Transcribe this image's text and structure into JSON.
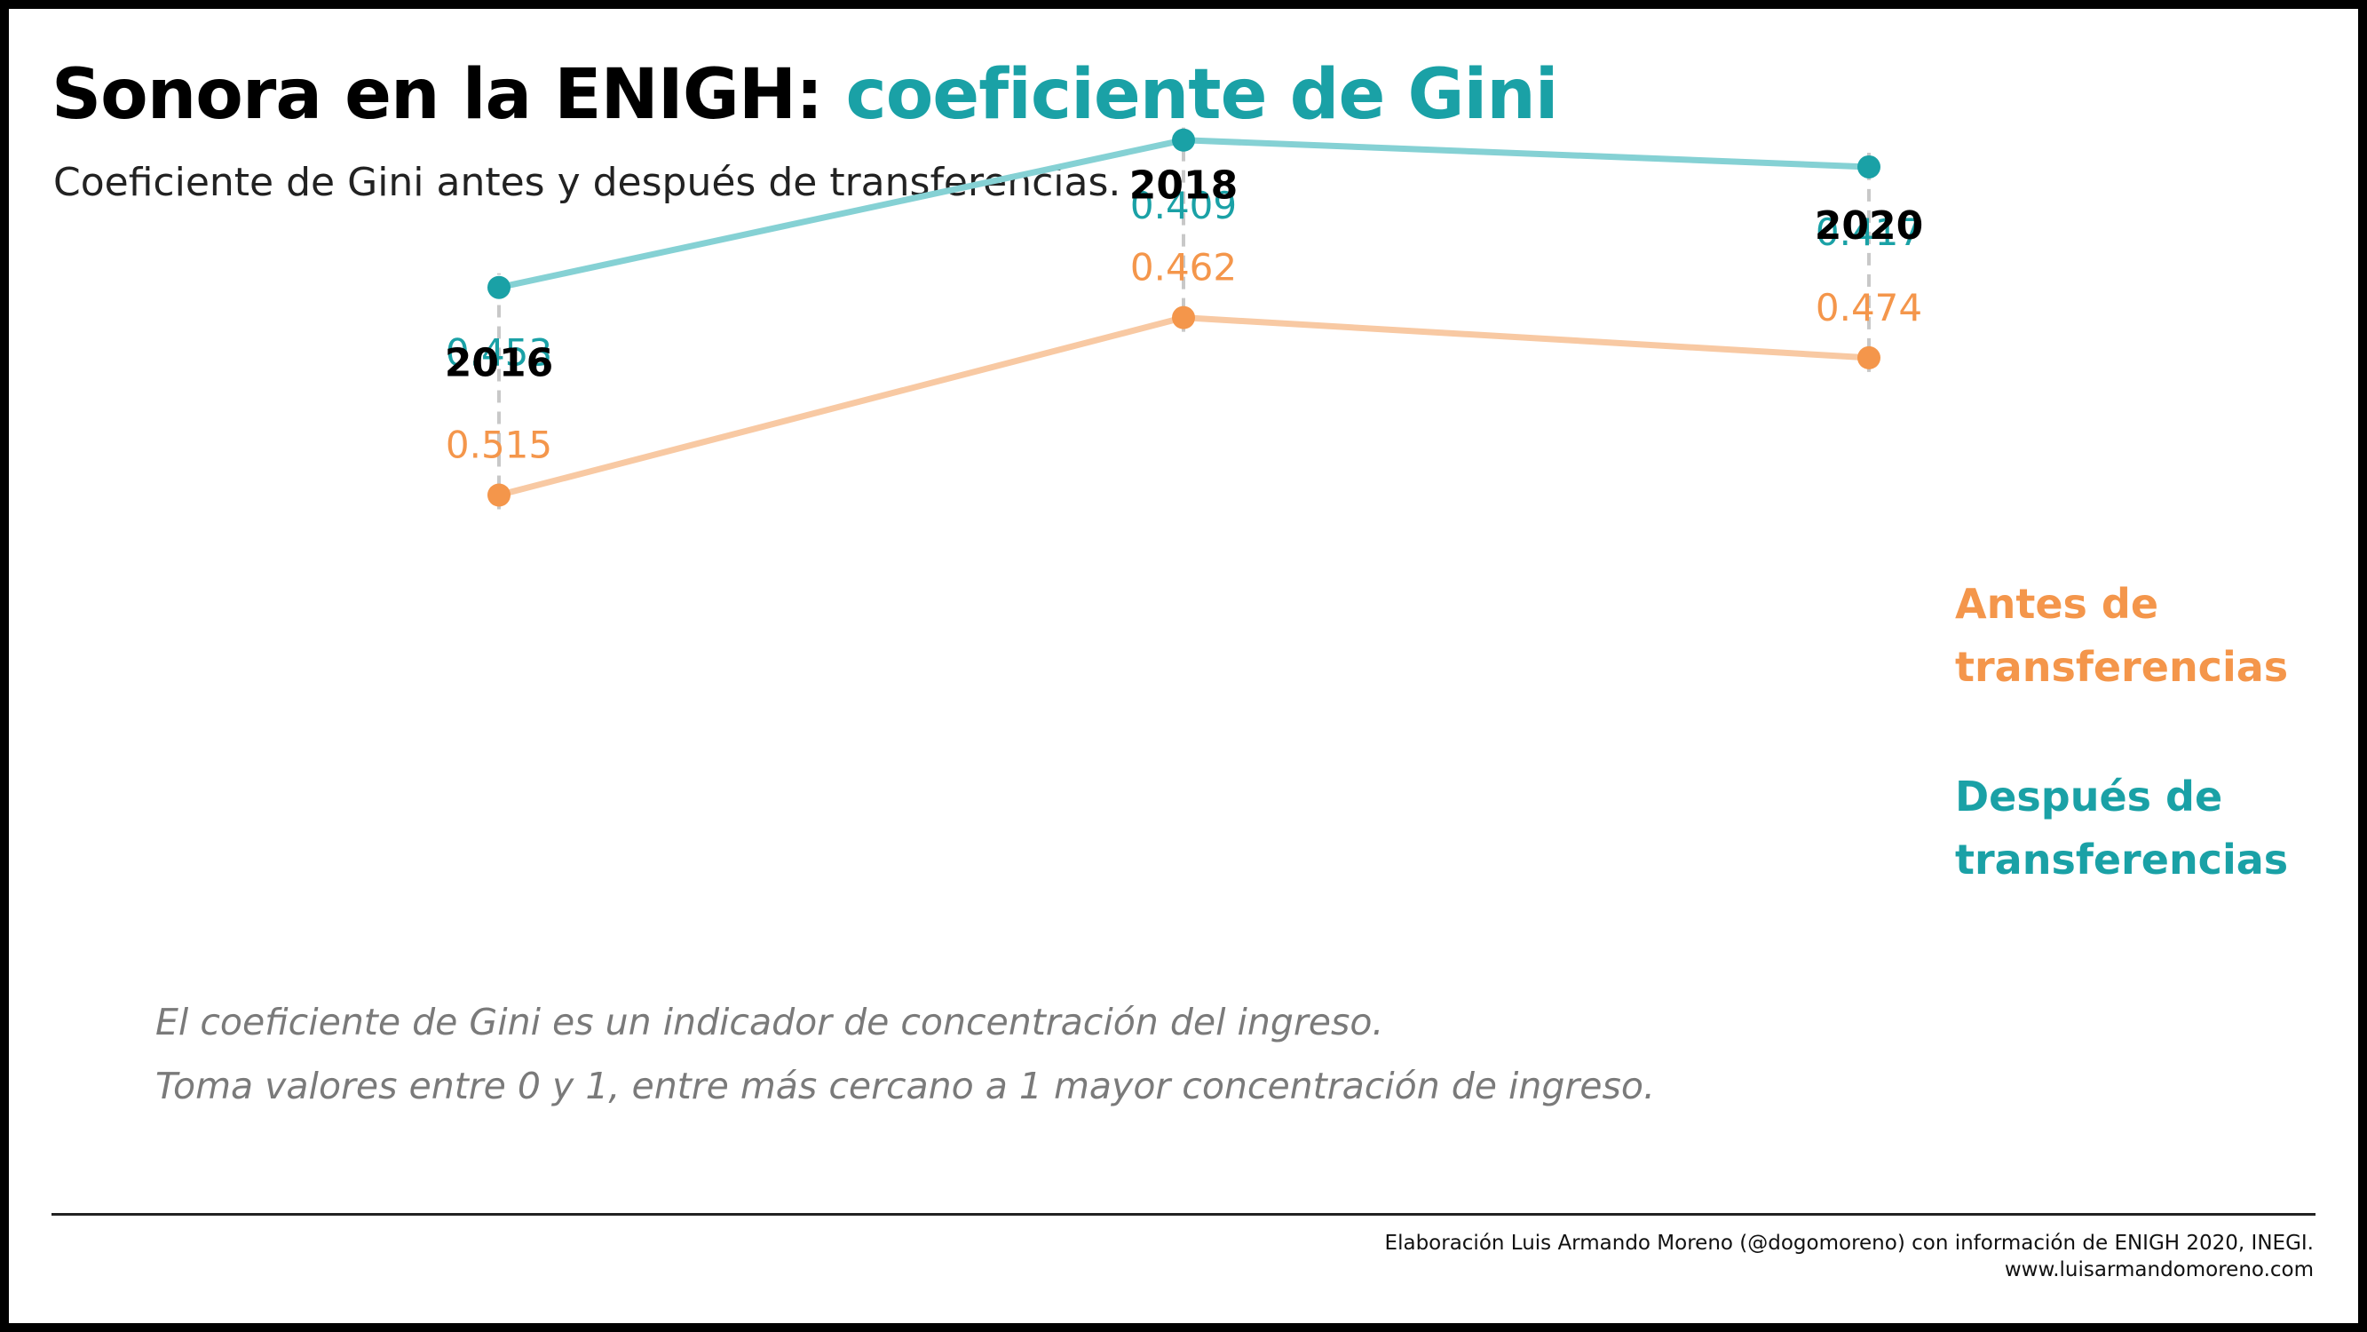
{
  "title": {
    "part1": "Sonora en la ENIGH: ",
    "part2": "coeficiente de Gini"
  },
  "subtitle": "Coeficiente de Gini antes y después de transferencias.",
  "colors": {
    "before": "#f4964b",
    "before_line": "#f8c9a3",
    "after": "#1aa1a6",
    "after_line": "#85d1d4",
    "connector": "#c8c8c8"
  },
  "chart_data": {
    "type": "line",
    "categories": [
      "2016",
      "2018",
      "2020"
    ],
    "series": [
      {
        "name": "Antes de transferencias",
        "values": [
          0.515,
          0.462,
          0.474
        ],
        "labels": [
          "0.515",
          "0.462",
          "0.474"
        ]
      },
      {
        "name": "Después de transferencias",
        "values": [
          0.453,
          0.409,
          0.417
        ],
        "labels": [
          "0.453",
          "0.409",
          "0.417"
        ]
      }
    ],
    "legend": {
      "before_lines": [
        "Antes de",
        "transferencias"
      ],
      "after_lines": [
        "Después de",
        "transferencias"
      ]
    },
    "grid": false
  },
  "note": {
    "line1": "El coeficiente de Gini es un indicador de concentración del ingreso.",
    "line2": "Toma valores entre 0 y 1, entre más cercano a 1 mayor concentración de ingreso."
  },
  "credit": {
    "line1": "Elaboración Luis Armando Moreno (@dogomoreno) con información de ENIGH 2020, INEGI.",
    "line2": "www.luisarmandomoreno.com"
  }
}
